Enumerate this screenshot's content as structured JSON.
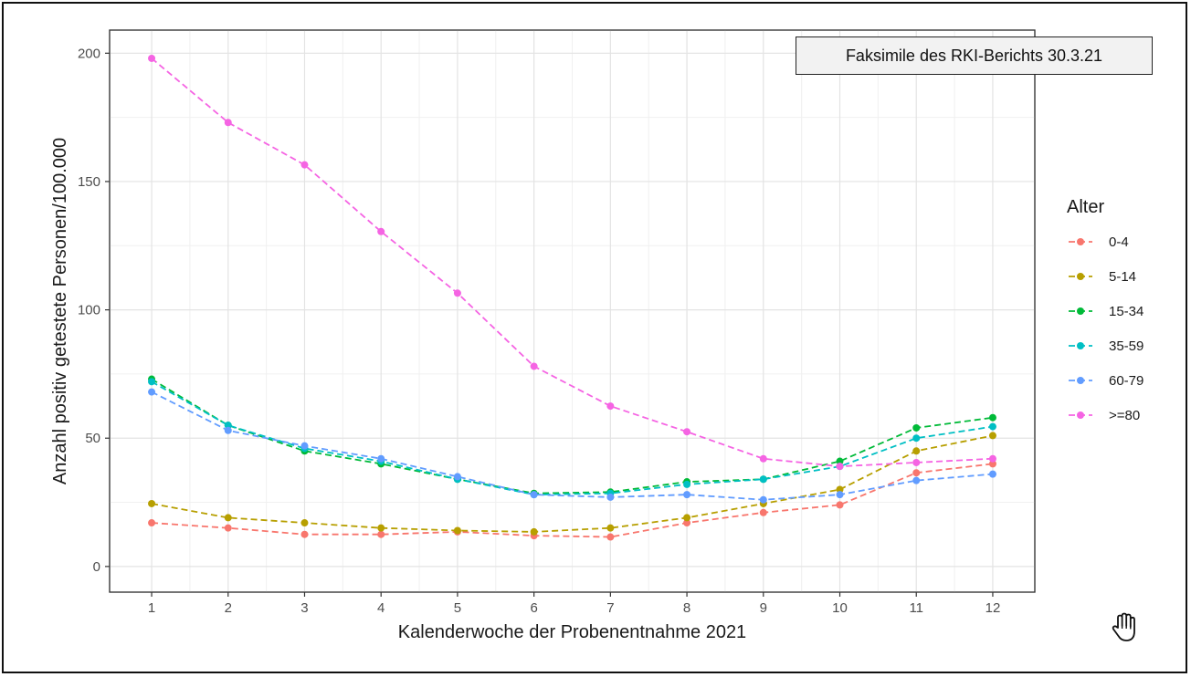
{
  "annotation": "Faksimile des RKI-Berichts 30.3.21",
  "cursor_icon": "hand-pointer-icon",
  "chart_data": {
    "type": "line",
    "xlabel": "Kalenderwoche der Probenentnahme 2021",
    "ylabel": "Anzahl positiv getestete Personen/100.000",
    "x": [
      1,
      2,
      3,
      4,
      5,
      6,
      7,
      8,
      9,
      10,
      11,
      12
    ],
    "xlim": [
      0.45,
      12.55
    ],
    "ylim": [
      -10,
      209
    ],
    "yticks": [
      0,
      50,
      100,
      150,
      200
    ],
    "grid": true,
    "line_style": "dashed",
    "legend": {
      "title": "Alter",
      "position": "right"
    },
    "series": [
      {
        "name": "0-4",
        "color": "#F8766D",
        "values": [
          17,
          15,
          12.5,
          12.5,
          13.5,
          12,
          11.5,
          17,
          21,
          24,
          36.5,
          40
        ]
      },
      {
        "name": "5-14",
        "color": "#B79F00",
        "values": [
          24.5,
          19,
          17,
          15,
          14,
          13.5,
          15,
          19,
          24.5,
          30,
          45,
          51
        ]
      },
      {
        "name": "15-34",
        "color": "#00BA38",
        "values": [
          73,
          55,
          45,
          40,
          34,
          28.5,
          29,
          33,
          34,
          41,
          54,
          58
        ]
      },
      {
        "name": "35-59",
        "color": "#00BFC4",
        "values": [
          72,
          55,
          46,
          41,
          34,
          28,
          28.5,
          32,
          34,
          39,
          50,
          54.5
        ]
      },
      {
        "name": "60-79",
        "color": "#619CFF",
        "values": [
          68,
          53,
          47,
          42,
          35,
          28,
          27,
          28,
          26,
          28,
          33.5,
          36
        ]
      },
      {
        "name": ">=80",
        "color": "#F564E3",
        "values": [
          198,
          173,
          156.5,
          130.5,
          106.5,
          78,
          62.5,
          52.5,
          42,
          39,
          40.5,
          42
        ]
      }
    ]
  }
}
